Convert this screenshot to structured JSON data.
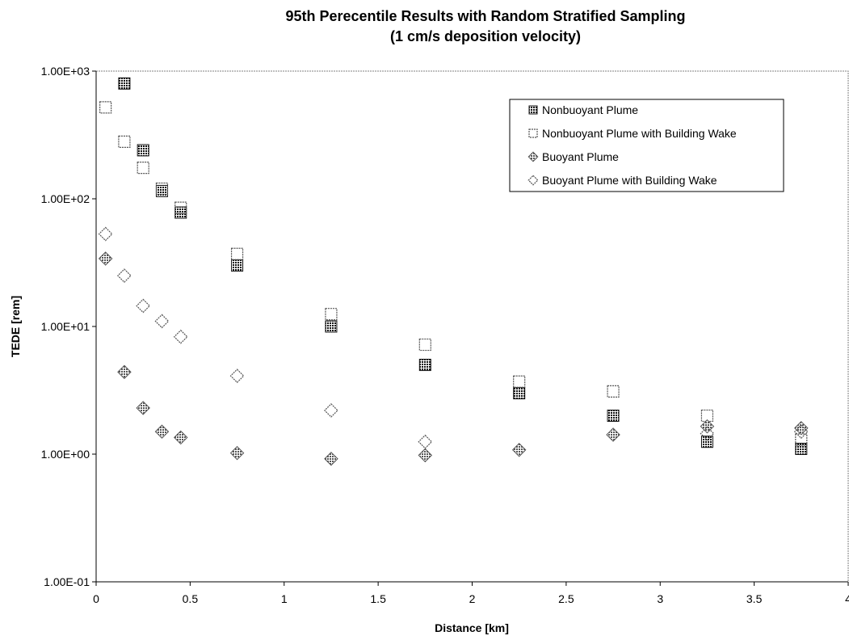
{
  "chart_data": {
    "type": "scatter",
    "title_line1": "95th Perecentile Results with Random Stratified Sampling",
    "title_line2": "(1 cm/s deposition velocity)",
    "xlabel": "Distance [km]",
    "ylabel": "TEDE [rem]",
    "xlim": [
      0,
      4
    ],
    "ylim": [
      0.1,
      1000
    ],
    "yscale": "log",
    "x_ticks": [
      0,
      0.5,
      1,
      1.5,
      2,
      2.5,
      3,
      3.5,
      4
    ],
    "x_tick_labels": [
      "0",
      "0.5",
      "1",
      "1.5",
      "2",
      "2.5",
      "3",
      "3.5",
      "4"
    ],
    "y_ticks": [
      0.1,
      1,
      10,
      100,
      1000
    ],
    "y_tick_labels": [
      "1.00E-01",
      "1.00E+00",
      "1.00E+01",
      "1.00E+02",
      "1.00E+03"
    ],
    "grid": false,
    "legend_position": "top-right",
    "series": [
      {
        "name": "Nonbuoyant Plume",
        "marker": "square-filled",
        "color": "#222222",
        "x": [
          0.15,
          0.25,
          0.35,
          0.45,
          0.75,
          1.25,
          1.75,
          2.25,
          2.75,
          3.25,
          3.75
        ],
        "y": [
          800,
          240,
          115,
          78,
          30,
          10,
          5,
          3,
          2,
          1.25,
          1.1
        ]
      },
      {
        "name": "Nonbuoyant Plume with Building Wake",
        "marker": "square-open",
        "color": "#666666",
        "x": [
          0.05,
          0.15,
          0.25,
          0.35,
          0.45,
          0.75,
          1.25,
          1.75,
          2.25,
          2.75,
          3.25,
          3.75
        ],
        "y": [
          520,
          280,
          175,
          120,
          85,
          37,
          12.5,
          7.2,
          3.7,
          3.1,
          2.0,
          1.3
        ]
      },
      {
        "name": "Buoyant Plume",
        "marker": "diamond-filled",
        "color": "#666666",
        "x": [
          0.05,
          0.15,
          0.25,
          0.35,
          0.45,
          0.75,
          1.25,
          1.75,
          2.25,
          2.75,
          3.25,
          3.75
        ],
        "y": [
          34,
          4.4,
          2.3,
          1.5,
          1.35,
          1.02,
          0.92,
          0.98,
          1.08,
          1.42,
          1.65,
          1.6
        ]
      },
      {
        "name": "Buoyant Plume with Building Wake",
        "marker": "diamond-open",
        "color": "#666666",
        "x": [
          0.05,
          0.15,
          0.25,
          0.35,
          0.45,
          0.75,
          1.25,
          1.75,
          3.25,
          3.75
        ],
        "y": [
          53,
          25,
          14.5,
          11,
          8.3,
          4.1,
          2.2,
          1.25,
          1.45,
          1.5
        ]
      }
    ]
  }
}
